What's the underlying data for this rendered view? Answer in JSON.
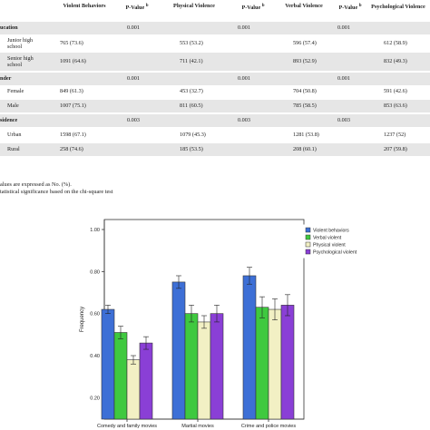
{
  "table": {
    "headers": [
      "Violent Behaviors",
      "P-Value",
      "Physical Violence",
      "P-Value",
      "Verbal Violence",
      "P-Value",
      "Psychological Violence"
    ],
    "sup": "b",
    "rows": [
      {
        "kind": "section",
        "label": "ucation",
        "p1": "0.001",
        "p2": "0.001",
        "p3": "0.001",
        "p4": "0.001"
      },
      {
        "kind": "data",
        "label": "Junior high school",
        "violent": "765 (73.6)",
        "physical": "553 (53.2)",
        "verbal": "596 (57.4)",
        "psych": "612 (58.9)"
      },
      {
        "kind": "data",
        "label": "Senior high school",
        "violent": "1091 (64.6)",
        "physical": "711 (42.1)",
        "verbal": "893 (52.9)",
        "psych": "832 (49.3)"
      },
      {
        "kind": "section",
        "label": "nder",
        "p1": "0.001",
        "p2": "0.001",
        "p3": "0.001",
        "p4": "0.001"
      },
      {
        "kind": "data",
        "label": "Female",
        "violent": "849 (61.3)",
        "physical": "453 (32.7)",
        "verbal": "704 (50.8)",
        "psych": "591 (42.6)"
      },
      {
        "kind": "data",
        "label": "Male",
        "violent": "1007 (75.1)",
        "physical": "811 (60.5)",
        "verbal": "785 (58.5)",
        "psych": "853 (63.6)"
      },
      {
        "kind": "section",
        "label": "sidence",
        "p1": "0.003",
        "p2": "0.003",
        "p3": "0.003",
        "p4": "0.003"
      },
      {
        "kind": "data",
        "label": "Urban",
        "violent": "1598 (67.1)",
        "physical": "1079 (45.3)",
        "verbal": "1281 (53.8)",
        "psych": "1237 (52)"
      },
      {
        "kind": "data",
        "label": "Rural",
        "violent": "258 (74.6)",
        "physical": "185 (53.5)",
        "verbal": "208 (60.1)",
        "psych": "207 (59.8)"
      }
    ],
    "notes": [
      "alues are expressed as No. (%).",
      "tatistical significance based on the chi-square test"
    ]
  },
  "colors": {
    "violent": "#3d6fd6",
    "verbal": "#3fc93f",
    "physical": "#f2f0c4",
    "psychological": "#8a3fd6",
    "shade": "#e6e6e6"
  },
  "chart_data": {
    "type": "bar",
    "ylabel": "Frequency",
    "ylim": [
      0.2,
      1.0
    ],
    "yticks": [
      "0.20",
      "0.40",
      "0.60",
      "0.80",
      "1.00"
    ],
    "legend_position": "top-right",
    "categories": [
      "Comedy and family movies",
      "Martial movies",
      "Crime and police movies"
    ],
    "series": [
      {
        "name": "Violent behaviors",
        "values": [
          0.62,
          0.75,
          0.78
        ],
        "err": [
          0.02,
          0.03,
          0.04
        ]
      },
      {
        "name": "Verbal violent",
        "values": [
          0.51,
          0.6,
          0.63
        ],
        "err": [
          0.03,
          0.04,
          0.05
        ]
      },
      {
        "name": "Physical violent",
        "values": [
          0.38,
          0.56,
          0.62
        ],
        "err": [
          0.02,
          0.03,
          0.05
        ]
      },
      {
        "name": "Psychological violent",
        "values": [
          0.46,
          0.6,
          0.64
        ],
        "err": [
          0.03,
          0.04,
          0.05
        ]
      }
    ]
  }
}
